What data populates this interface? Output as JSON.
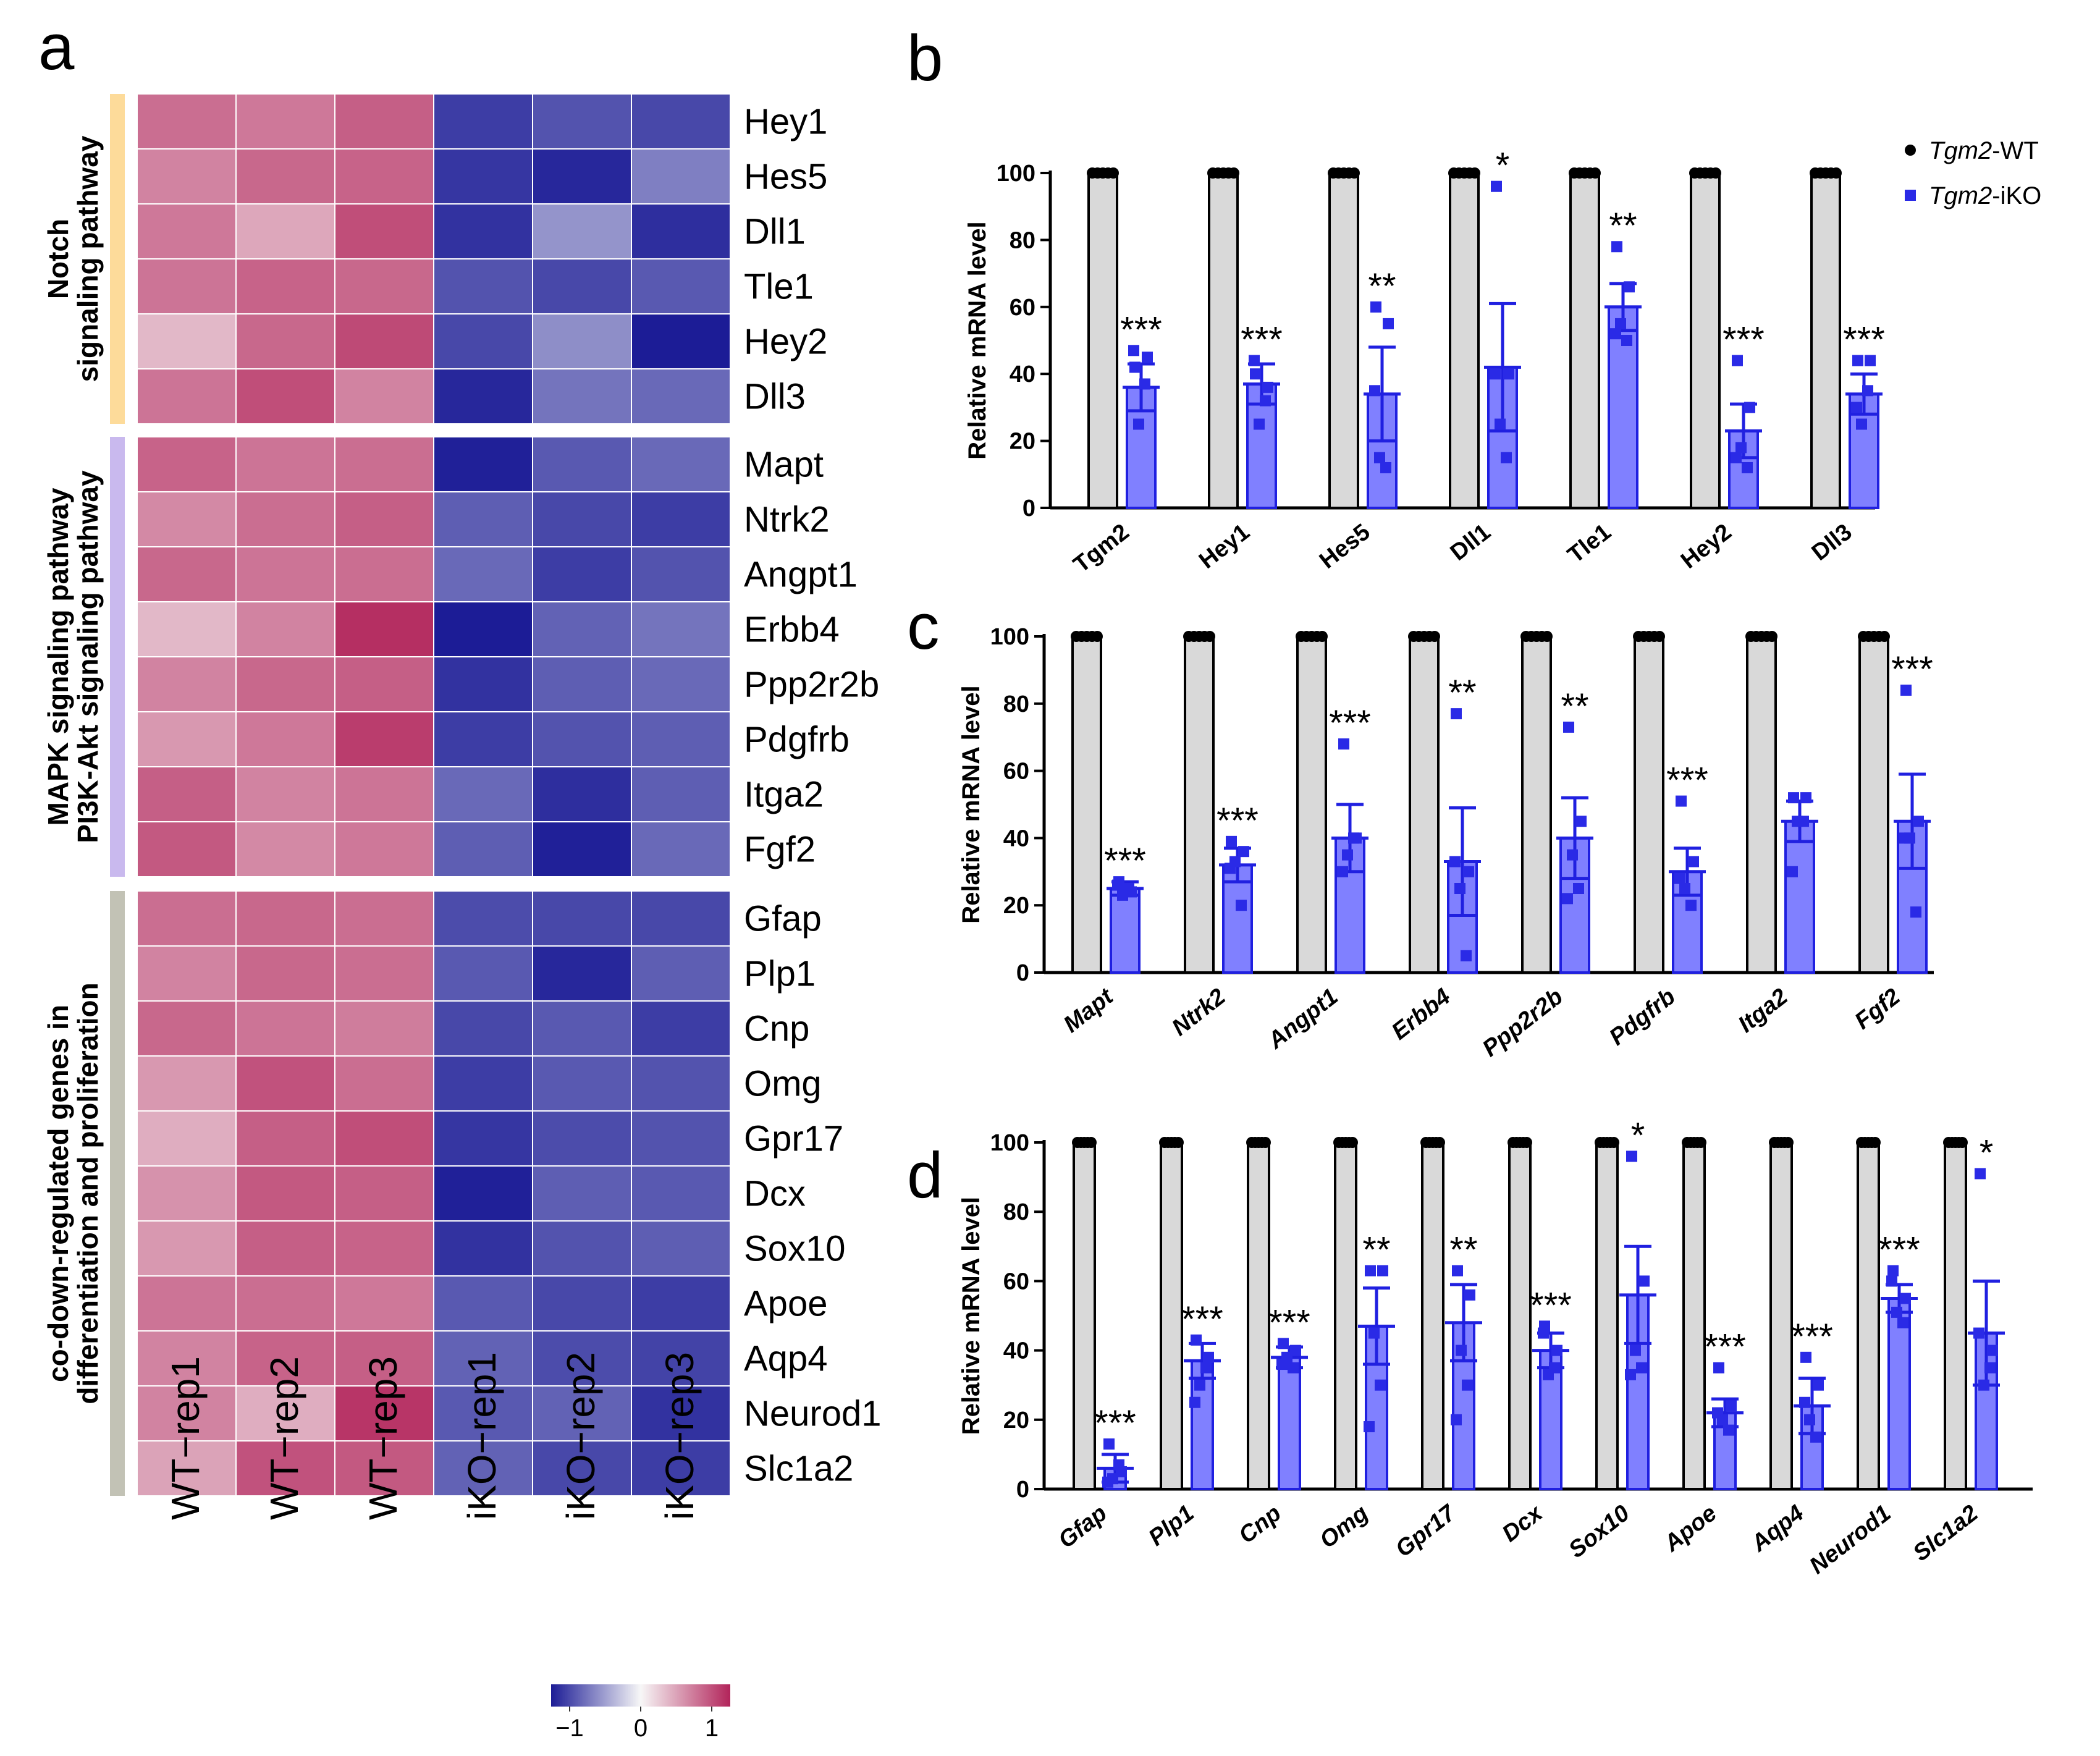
{
  "panels": {
    "a": "a",
    "b": "b",
    "c": "c",
    "d": "d"
  },
  "colors": {
    "wt_bar": "#d9d9d9",
    "wt_edge": "#000000",
    "iko_bar": "#8080ff",
    "iko_edge": "#2020e0",
    "iko_point": "#2a2ae6",
    "heat_low": "#1c1c96",
    "heat_mid": "#f7f7f7",
    "heat_high": "#b2245a"
  },
  "legend": {
    "wt_italic": "Tgm2",
    "wt_suffix": "-WT",
    "iko_italic": "Tgm2",
    "iko_suffix": "-iKO"
  },
  "chart_data": [
    {
      "panel": "a",
      "type": "heatmap",
      "columns": [
        "WT−rep1",
        "WT−rep2",
        "WT−rep3",
        "iKO−rep1",
        "iKO−rep2",
        "iKO−rep3"
      ],
      "rows": [
        "Hey1",
        "Hes5",
        "Dll1",
        "Tle1",
        "Hey2",
        "Dll3",
        "Mapt",
        "Ntrk2",
        "Angpt1",
        "Erbb4",
        "Ppp2r2b",
        "Pdgfrb",
        "Itga2",
        "Fgf2",
        "Gfap",
        "Plp1",
        "Cnp",
        "Omg",
        "Gpr17",
        "Dcx",
        "Sox10",
        "Apoe",
        "Aqp4",
        "Neurod1",
        "Slc1a2"
      ],
      "values": [
        [
          0.65,
          0.6,
          0.72,
          -0.85,
          -0.75,
          -0.8
        ],
        [
          0.55,
          0.68,
          0.7,
          -0.88,
          -0.95,
          -0.55
        ],
        [
          0.6,
          0.38,
          0.8,
          -0.9,
          -0.45,
          -0.92
        ],
        [
          0.62,
          0.7,
          0.68,
          -0.75,
          -0.8,
          -0.72
        ],
        [
          0.3,
          0.68,
          0.82,
          -0.8,
          -0.48,
          -1.0
        ],
        [
          0.62,
          0.8,
          0.55,
          -0.95,
          -0.6,
          -0.65
        ],
        [
          0.7,
          0.62,
          0.65,
          -0.98,
          -0.72,
          -0.65
        ],
        [
          0.52,
          0.65,
          0.72,
          -0.7,
          -0.8,
          -0.85
        ],
        [
          0.68,
          0.62,
          0.65,
          -0.65,
          -0.85,
          -0.75
        ],
        [
          0.3,
          0.55,
          0.95,
          -1.0,
          -0.68,
          -0.6
        ],
        [
          0.55,
          0.68,
          0.72,
          -0.9,
          -0.7,
          -0.65
        ],
        [
          0.45,
          0.6,
          0.88,
          -0.85,
          -0.75,
          -0.7
        ],
        [
          0.72,
          0.55,
          0.62,
          -0.65,
          -0.92,
          -0.7
        ],
        [
          0.75,
          0.52,
          0.6,
          -0.7,
          -0.98,
          -0.65
        ],
        [
          0.65,
          0.68,
          0.65,
          -0.78,
          -0.8,
          -0.8
        ],
        [
          0.55,
          0.68,
          0.65,
          -0.72,
          -0.95,
          -0.7
        ],
        [
          0.68,
          0.62,
          0.58,
          -0.8,
          -0.72,
          -0.85
        ],
        [
          0.45,
          0.78,
          0.65,
          -0.85,
          -0.72,
          -0.75
        ],
        [
          0.35,
          0.72,
          0.8,
          -0.88,
          -0.78,
          -0.75
        ],
        [
          0.48,
          0.75,
          0.72,
          -0.98,
          -0.7,
          -0.72
        ],
        [
          0.45,
          0.72,
          0.7,
          -0.9,
          -0.75,
          -0.7
        ],
        [
          0.62,
          0.65,
          0.6,
          -0.72,
          -0.8,
          -0.85
        ],
        [
          0.55,
          0.7,
          0.72,
          -0.68,
          -0.78,
          -0.82
        ],
        [
          0.55,
          0.35,
          0.92,
          -0.72,
          -0.68,
          -0.9
        ],
        [
          0.4,
          0.78,
          0.75,
          -0.68,
          -0.8,
          -0.85
        ]
      ],
      "groups": [
        {
          "label_lines": [
            "Notch",
            "signaling pathway"
          ],
          "start": 0,
          "end": 5,
          "color": "#fddb9a"
        },
        {
          "label_lines": [
            "MAPK signaling pathway",
            "PI3K-Akt signaling pathway"
          ],
          "start": 6,
          "end": 13,
          "color": "#c9b9ee"
        },
        {
          "label_lines": [
            "co-down-regulated genes in",
            "differentiation and proliferation"
          ],
          "start": 14,
          "end": 24,
          "color": "#c2c2b5"
        }
      ],
      "colorbar": {
        "range": [
          -1,
          1
        ],
        "ticks": [
          "−1",
          "0",
          "1"
        ]
      }
    },
    {
      "panel": "b",
      "type": "bar",
      "ylabel": "Relative mRNA level",
      "ylim": [
        0,
        100
      ],
      "yticks": [
        "0",
        "20",
        "40",
        "60",
        "80",
        "100"
      ],
      "italic_categories": false,
      "categories": [
        "Tgm2",
        "Hey1",
        "Hes5",
        "Dll1",
        "Tle1",
        "Hey2",
        "Dll3"
      ],
      "series": [
        {
          "name": "Tgm2-WT",
          "values": [
            100,
            100,
            100,
            100,
            100,
            100,
            100
          ]
        },
        {
          "name": "Tgm2-iKO",
          "values": [
            36,
            37,
            34,
            42,
            60,
            23,
            34
          ],
          "errors": [
            7,
            6,
            14,
            19,
            7,
            8,
            6
          ],
          "points": [
            [
              42,
              45,
              25,
              37,
              47
            ],
            [
              40,
              36,
              25,
              32,
              44
            ],
            [
              60,
              55,
              15,
              12,
              35
            ],
            [
              96,
              40,
              25,
              15,
              40
            ],
            [
              78,
              66,
              55,
              50,
              52
            ],
            [
              44,
              30,
              18,
              12,
              15
            ],
            [
              44,
              44,
              25,
              35,
              30
            ]
          ]
        }
      ],
      "significance": [
        "***",
        "***",
        "**",
        "*",
        "**",
        "***",
        "***"
      ]
    },
    {
      "panel": "c",
      "type": "bar",
      "ylabel": "Relative mRNA level",
      "ylim": [
        0,
        100
      ],
      "yticks": [
        "0",
        "20",
        "40",
        "60",
        "80",
        "100"
      ],
      "italic_categories": true,
      "categories": [
        "Mapt",
        "Ntrk2",
        "Angpt1",
        "Erbb4",
        "Ppp2r2b",
        "Pdgfrb",
        "Itga2",
        "Fgf2"
      ],
      "series": [
        {
          "name": "Tgm2-WT",
          "values": [
            100,
            100,
            100,
            100,
            100,
            100,
            100,
            100
          ]
        },
        {
          "name": "Tgm2-iKO",
          "values": [
            25,
            32,
            40,
            33,
            40,
            30,
            45,
            45
          ],
          "errors": [
            2,
            5,
            10,
            16,
            12,
            7,
            6,
            14
          ],
          "points": [
            [
              27,
              24,
              23,
              25,
              26
            ],
            [
              39,
              36,
              33,
              20,
              31
            ],
            [
              68,
              40,
              35,
              40,
              30
            ],
            [
              77,
              30,
              25,
              5,
              33
            ],
            [
              73,
              45,
              35,
              25,
              22
            ],
            [
              51,
              33,
              25,
              20,
              28
            ],
            [
              52,
              52,
              45,
              45,
              30
            ],
            [
              84,
              45,
              40,
              18,
              40
            ]
          ]
        }
      ],
      "significance": [
        "***",
        "***",
        "***",
        "**",
        "**",
        "***",
        "",
        "***"
      ]
    },
    {
      "panel": "d",
      "type": "bar",
      "ylabel": "Relative mRNA level",
      "ylim": [
        0,
        100
      ],
      "yticks": [
        "0",
        "20",
        "40",
        "60",
        "80",
        "100"
      ],
      "italic_categories": true,
      "categories": [
        "Gfap",
        "Plp1",
        "Cnp",
        "Omg",
        "Gpr17",
        "Dcx",
        "Sox10",
        "Apoe",
        "Aqp4",
        "Neurod1",
        "Slc1a2"
      ],
      "series": [
        {
          "name": "Tgm2-WT",
          "values": [
            100,
            100,
            100,
            100,
            100,
            100,
            100,
            100,
            100,
            100,
            100
          ]
        },
        {
          "name": "Tgm2-iKO",
          "values": [
            6,
            37,
            38,
            47,
            48,
            40,
            56,
            22,
            24,
            55,
            45
          ],
          "errors": [
            4,
            5,
            3,
            11,
            11,
            5,
            14,
            4,
            8,
            4,
            15
          ],
          "points": [
            [
              13,
              5,
              3,
              7,
              2
            ],
            [
              43,
              38,
              30,
              35,
              25
            ],
            [
              42,
              40,
              38,
              35,
              36
            ],
            [
              63,
              63,
              45,
              30,
              18
            ],
            [
              63,
              56,
              40,
              30,
              20
            ],
            [
              47,
              40,
              33,
              35,
              45
            ],
            [
              96,
              60,
              40,
              35,
              33
            ],
            [
              35,
              24,
              20,
              17,
              22
            ],
            [
              38,
              30,
              20,
              15,
              25
            ],
            [
              63,
              55,
              51,
              48,
              60
            ],
            [
              91,
              40,
              30,
              35,
              45
            ]
          ]
        }
      ],
      "significance": [
        "***",
        "***",
        "***",
        "**",
        "**",
        "***",
        "*",
        "***",
        "***",
        "***",
        "*"
      ]
    }
  ]
}
